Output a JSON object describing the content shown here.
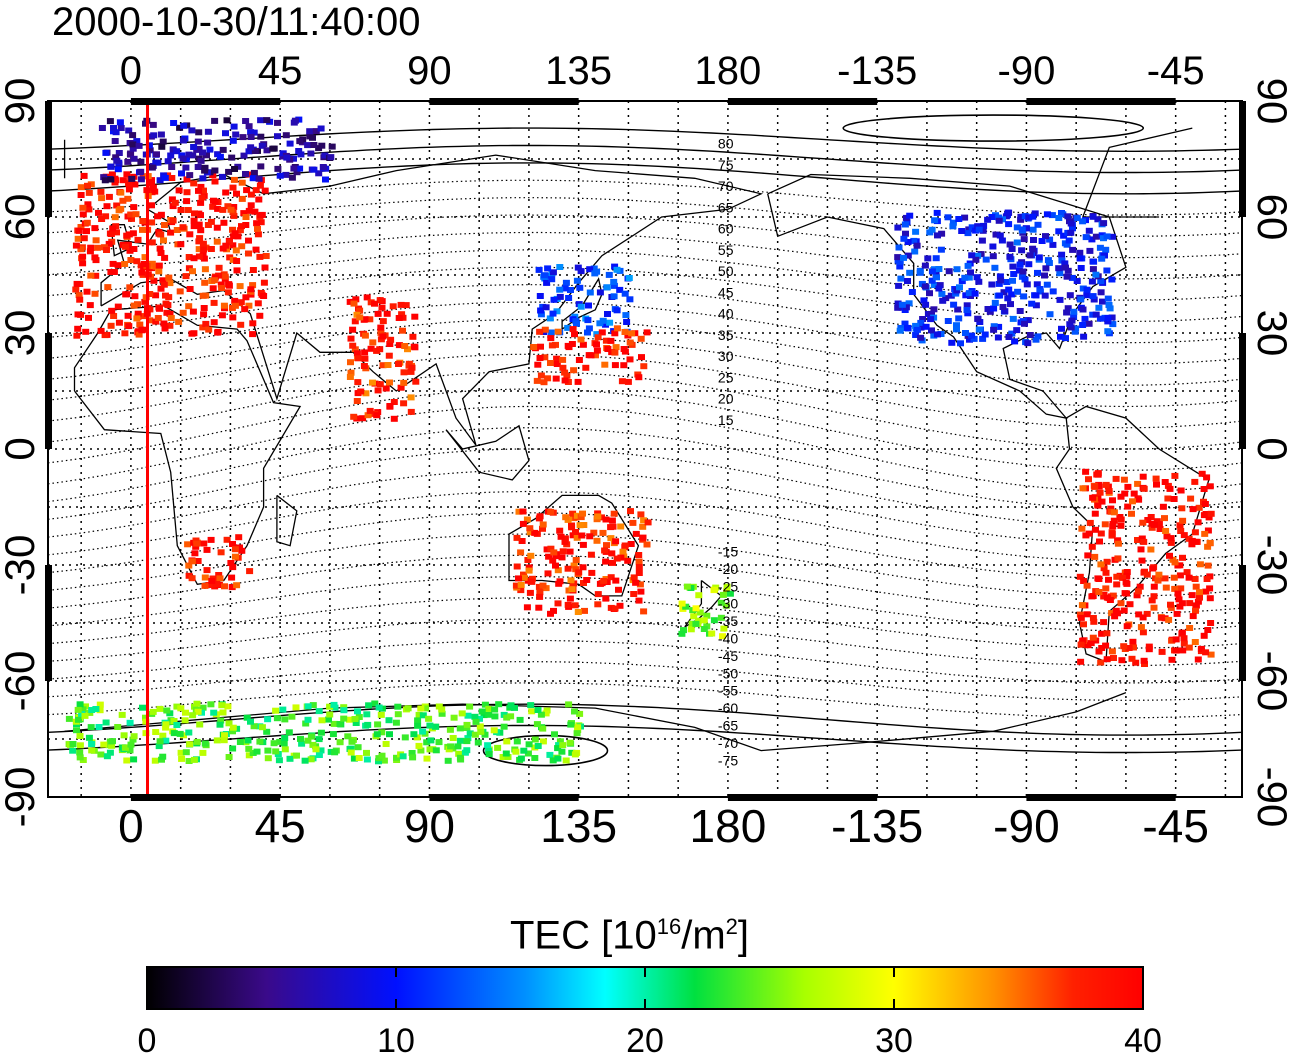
{
  "title": "2000-10-30/11:40:00",
  "map": {
    "projection": "equirectangular",
    "center_lon": 180,
    "lon_ticks": [
      0,
      45,
      90,
      135,
      180,
      -135,
      -90,
      -45
    ],
    "lat_ticks": [
      90,
      60,
      30,
      0,
      -30,
      -60,
      -90
    ],
    "grid_lines": true,
    "red_meridian_lon": 5,
    "magnetic_lat_labels_north": [
      "80",
      "75",
      "70",
      "65",
      "60",
      "55",
      "50",
      "45",
      "40",
      "35",
      "30",
      "25",
      "20",
      "15"
    ],
    "magnetic_lat_labels_south": [
      "-15",
      "-20",
      "-25",
      "-30",
      "-35",
      "-40",
      "-45",
      "-50",
      "-55",
      "-60",
      "-65",
      "-70",
      "-75"
    ]
  },
  "colorbar": {
    "title_prefix": "TEC  [10",
    "title_sup1": "16",
    "title_mid": "/m",
    "title_sup2": "2",
    "title_suffix": "]",
    "min": 0,
    "max": 40,
    "ticks": [
      "0",
      "10",
      "20",
      "30",
      "40"
    ],
    "colormap": "jet-black-to-red"
  },
  "colors": {
    "grid": "#000000",
    "meridian": "#ff0000",
    "low_tec": "#2030ff",
    "high_tec": "#ff1a1a"
  },
  "regions": [
    {
      "name": "europe",
      "lon": [
        -18,
        40
      ],
      "lat": [
        30,
        72
      ],
      "value": 39
    },
    {
      "name": "north-america",
      "lon": [
        -130,
        -65
      ],
      "lat": [
        28,
        62
      ],
      "value": 10
    },
    {
      "name": "east-asia",
      "lon": [
        122,
        150
      ],
      "lat": [
        30,
        48
      ],
      "value": 12
    },
    {
      "name": "japan-south",
      "lon": [
        120,
        155
      ],
      "lat": [
        18,
        32
      ],
      "value": 39
    },
    {
      "name": "south-africa",
      "lon": [
        15,
        35
      ],
      "lat": [
        -35,
        -22
      ],
      "value": 39
    },
    {
      "name": "australia",
      "lon": [
        115,
        155
      ],
      "lat": [
        -42,
        -15
      ],
      "value": 38
    },
    {
      "name": "new-zealand",
      "lon": [
        165,
        180
      ],
      "lat": [
        -48,
        -34
      ],
      "value": 26
    },
    {
      "name": "south-america",
      "lon": [
        -75,
        -35
      ],
      "lat": [
        -55,
        -5
      ],
      "value": 39
    },
    {
      "name": "arctic-north",
      "lon": [
        -10,
        60
      ],
      "lat": [
        70,
        86
      ],
      "value": 6
    },
    {
      "name": "antarctic",
      "lon": [
        -20,
        135
      ],
      "lat": [
        -80,
        -65
      ],
      "value": 24
    },
    {
      "name": "india",
      "lon": [
        65,
        85
      ],
      "lat": [
        8,
        40
      ],
      "value": 38
    }
  ]
}
